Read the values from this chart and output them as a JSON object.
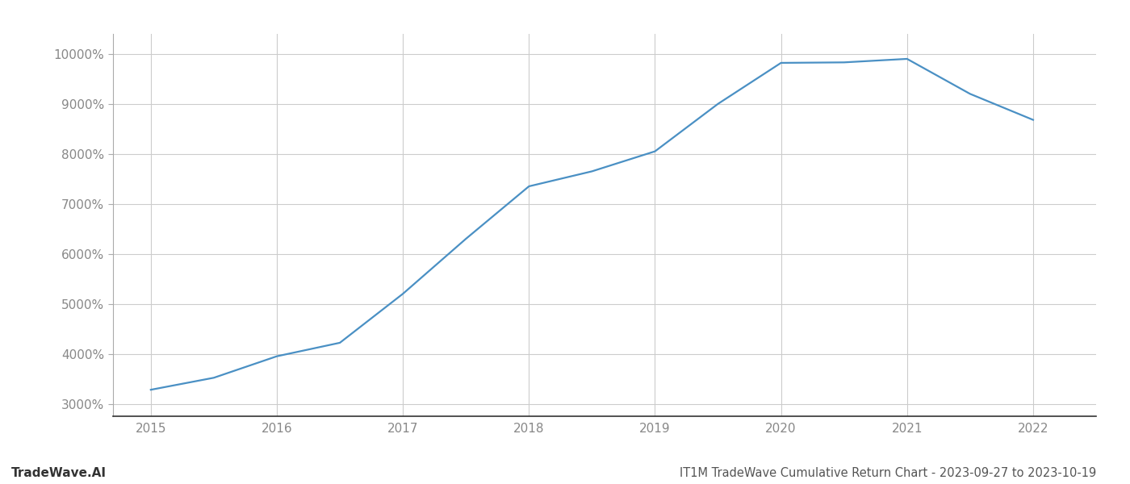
{
  "x": [
    2015.0,
    2015.5,
    2016.0,
    2016.5,
    2017.0,
    2017.5,
    2018.0,
    2018.25,
    2018.5,
    2019.0,
    2019.5,
    2020.0,
    2020.5,
    2021.0,
    2021.5,
    2022.0
  ],
  "y": [
    3280,
    3520,
    3950,
    4220,
    5200,
    6300,
    7350,
    7500,
    7650,
    8050,
    9000,
    9820,
    9830,
    9900,
    9200,
    8680
  ],
  "line_color": "#4a90c4",
  "line_width": 1.6,
  "title": "IT1M TradeWave Cumulative Return Chart - 2023-09-27 to 2023-10-19",
  "watermark": "TradeWave.AI",
  "xlim": [
    2014.7,
    2022.5
  ],
  "ylim": [
    2750,
    10400
  ],
  "yticks": [
    3000,
    4000,
    5000,
    6000,
    7000,
    8000,
    9000,
    10000
  ],
  "xticks": [
    2015,
    2016,
    2017,
    2018,
    2019,
    2020,
    2021,
    2022
  ],
  "background_color": "#ffffff",
  "grid_color": "#cccccc",
  "title_fontsize": 10.5,
  "tick_fontsize": 11,
  "watermark_fontsize": 11
}
